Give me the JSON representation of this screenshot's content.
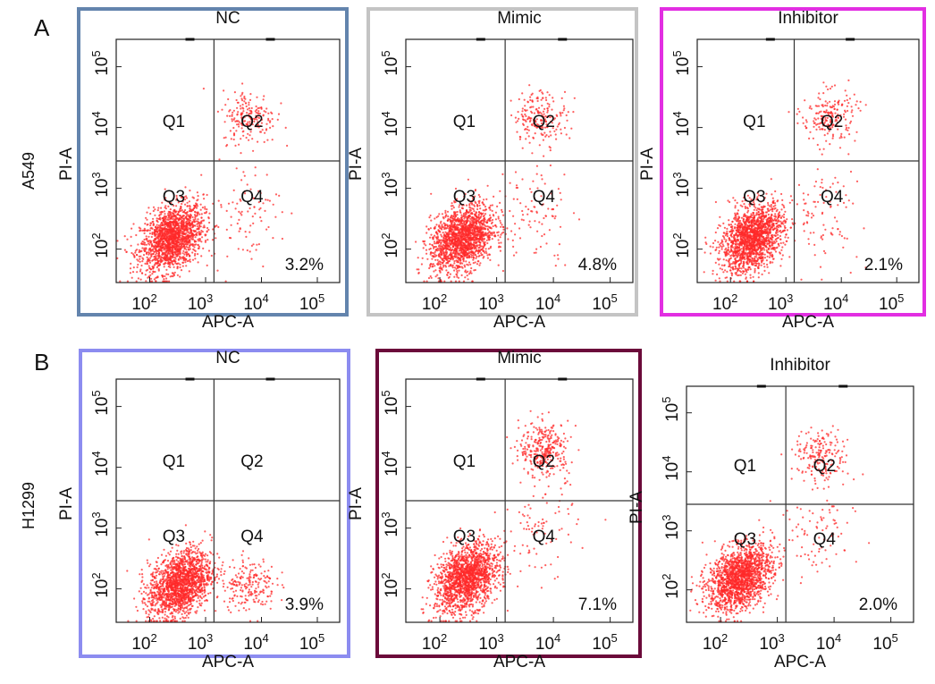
{
  "figure": {
    "panel_labels": [
      "A",
      "B"
    ],
    "row_labels": [
      "A549",
      "H1299"
    ]
  },
  "chart_data": [
    {
      "type": "scatter",
      "panel": "A",
      "row_label": "A549",
      "title": "NC",
      "frame_color": "#6384ad",
      "xlabel": "APC-A",
      "ylabel": "PI-A",
      "xscale": "log",
      "yscale": "log",
      "x_ticks": [
        "10^2",
        "10^3",
        "10^4",
        "10^5"
      ],
      "y_ticks": [
        "10^2",
        "10^3",
        "10^4",
        "10^5"
      ],
      "quadrant_labels": [
        "Q1",
        "Q2",
        "Q3",
        "Q4"
      ],
      "percent_label": "3.2%",
      "point_color": "#ff2a2a",
      "clusters": [
        {
          "quadrant": "Q3",
          "center": [
            250,
            150
          ],
          "density": "high"
        },
        {
          "quadrant": "Q2",
          "center": [
            6000,
            15000
          ],
          "density": "low"
        },
        {
          "quadrant": "Q4",
          "center": [
            5000,
            400
          ],
          "density": "sparse"
        }
      ]
    },
    {
      "type": "scatter",
      "panel": "A",
      "row_label": "A549",
      "title": "Mimic",
      "frame_color": "#c4c4c4",
      "xlabel": "APC-A",
      "ylabel": "PI-A",
      "xscale": "log",
      "yscale": "log",
      "x_ticks": [
        "10^2",
        "10^3",
        "10^4",
        "10^5"
      ],
      "y_ticks": [
        "10^2",
        "10^3",
        "10^4",
        "10^5"
      ],
      "quadrant_labels": [
        "Q1",
        "Q2",
        "Q3",
        "Q4"
      ],
      "percent_label": "4.8%",
      "point_color": "#ff2a2a",
      "clusters": [
        {
          "quadrant": "Q3",
          "center": [
            250,
            150
          ],
          "density": "high"
        },
        {
          "quadrant": "Q2",
          "center": [
            6000,
            15000
          ],
          "density": "low"
        },
        {
          "quadrant": "Q4",
          "center": [
            5000,
            400
          ],
          "density": "sparse"
        }
      ]
    },
    {
      "type": "scatter",
      "panel": "A",
      "row_label": "A549",
      "title": "Inhibitor",
      "frame_color": "#e22ee2",
      "xlabel": "APC-A",
      "ylabel": "PI-A",
      "xscale": "log",
      "yscale": "log",
      "x_ticks": [
        "10^2",
        "10^3",
        "10^4",
        "10^5"
      ],
      "y_ticks": [
        "10^2",
        "10^3",
        "10^4",
        "10^5"
      ],
      "quadrant_labels": [
        "Q1",
        "Q2",
        "Q3",
        "Q4"
      ],
      "percent_label": "2.1%",
      "point_color": "#ff2a2a",
      "clusters": [
        {
          "quadrant": "Q3",
          "center": [
            250,
            150
          ],
          "density": "high"
        },
        {
          "quadrant": "Q2",
          "center": [
            6000,
            15000
          ],
          "density": "low"
        },
        {
          "quadrant": "Q4",
          "center": [
            5000,
            400
          ],
          "density": "sparse"
        }
      ]
    },
    {
      "type": "scatter",
      "panel": "B",
      "row_label": "H1299",
      "title": "NC",
      "frame_color": "#8c8cf0",
      "xlabel": "APC-A",
      "ylabel": "PI-A",
      "xscale": "log",
      "yscale": "log",
      "x_ticks": [
        "10^2",
        "10^3",
        "10^4",
        "10^5"
      ],
      "y_ticks": [
        "10^2",
        "10^3",
        "10^4",
        "10^5"
      ],
      "quadrant_labels": [
        "Q1",
        "Q2",
        "Q3",
        "Q4"
      ],
      "percent_label": "3.9%",
      "point_color": "#ff2a2a",
      "clusters": [
        {
          "quadrant": "Q3",
          "center": [
            350,
            120
          ],
          "density": "high"
        },
        {
          "quadrant": "Q4",
          "center": [
            6000,
            120
          ],
          "density": "low"
        }
      ]
    },
    {
      "type": "scatter",
      "panel": "B",
      "row_label": "H1299",
      "title": "Mimic",
      "frame_color": "#6b0a3a",
      "xlabel": "APC-A",
      "ylabel": "PI-A",
      "xscale": "log",
      "yscale": "log",
      "x_ticks": [
        "10^2",
        "10^3",
        "10^4",
        "10^5"
      ],
      "y_ticks": [
        "10^2",
        "10^3",
        "10^4",
        "10^5"
      ],
      "quadrant_labels": [
        "Q1",
        "Q2",
        "Q3",
        "Q4"
      ],
      "percent_label": "7.1%",
      "point_color": "#ff2a2a",
      "clusters": [
        {
          "quadrant": "Q3",
          "center": [
            300,
            150
          ],
          "density": "high"
        },
        {
          "quadrant": "Q2",
          "center": [
            7000,
            20000
          ],
          "density": "medium"
        },
        {
          "quadrant": "Q4",
          "center": [
            6000,
            1000
          ],
          "density": "sparse"
        }
      ]
    },
    {
      "type": "scatter",
      "panel": "B",
      "row_label": "H1299",
      "title": "Inhibitor",
      "frame_color": "",
      "xlabel": "APC-A",
      "ylabel": "PI-A",
      "xscale": "log",
      "yscale": "log",
      "x_ticks": [
        "10^2",
        "10^3",
        "10^4",
        "10^5"
      ],
      "y_ticks": [
        "10^2",
        "10^3",
        "10^4",
        "10^5"
      ],
      "quadrant_labels": [
        "Q1",
        "Q2",
        "Q3",
        "Q4"
      ],
      "percent_label": "2.0%",
      "point_color": "#ff2a2a",
      "clusters": [
        {
          "quadrant": "Q3",
          "center": [
            220,
            160
          ],
          "density": "high"
        },
        {
          "quadrant": "Q2",
          "center": [
            6000,
            18000
          ],
          "density": "low"
        },
        {
          "quadrant": "Q4",
          "center": [
            5000,
            800
          ],
          "density": "sparse"
        }
      ]
    }
  ]
}
